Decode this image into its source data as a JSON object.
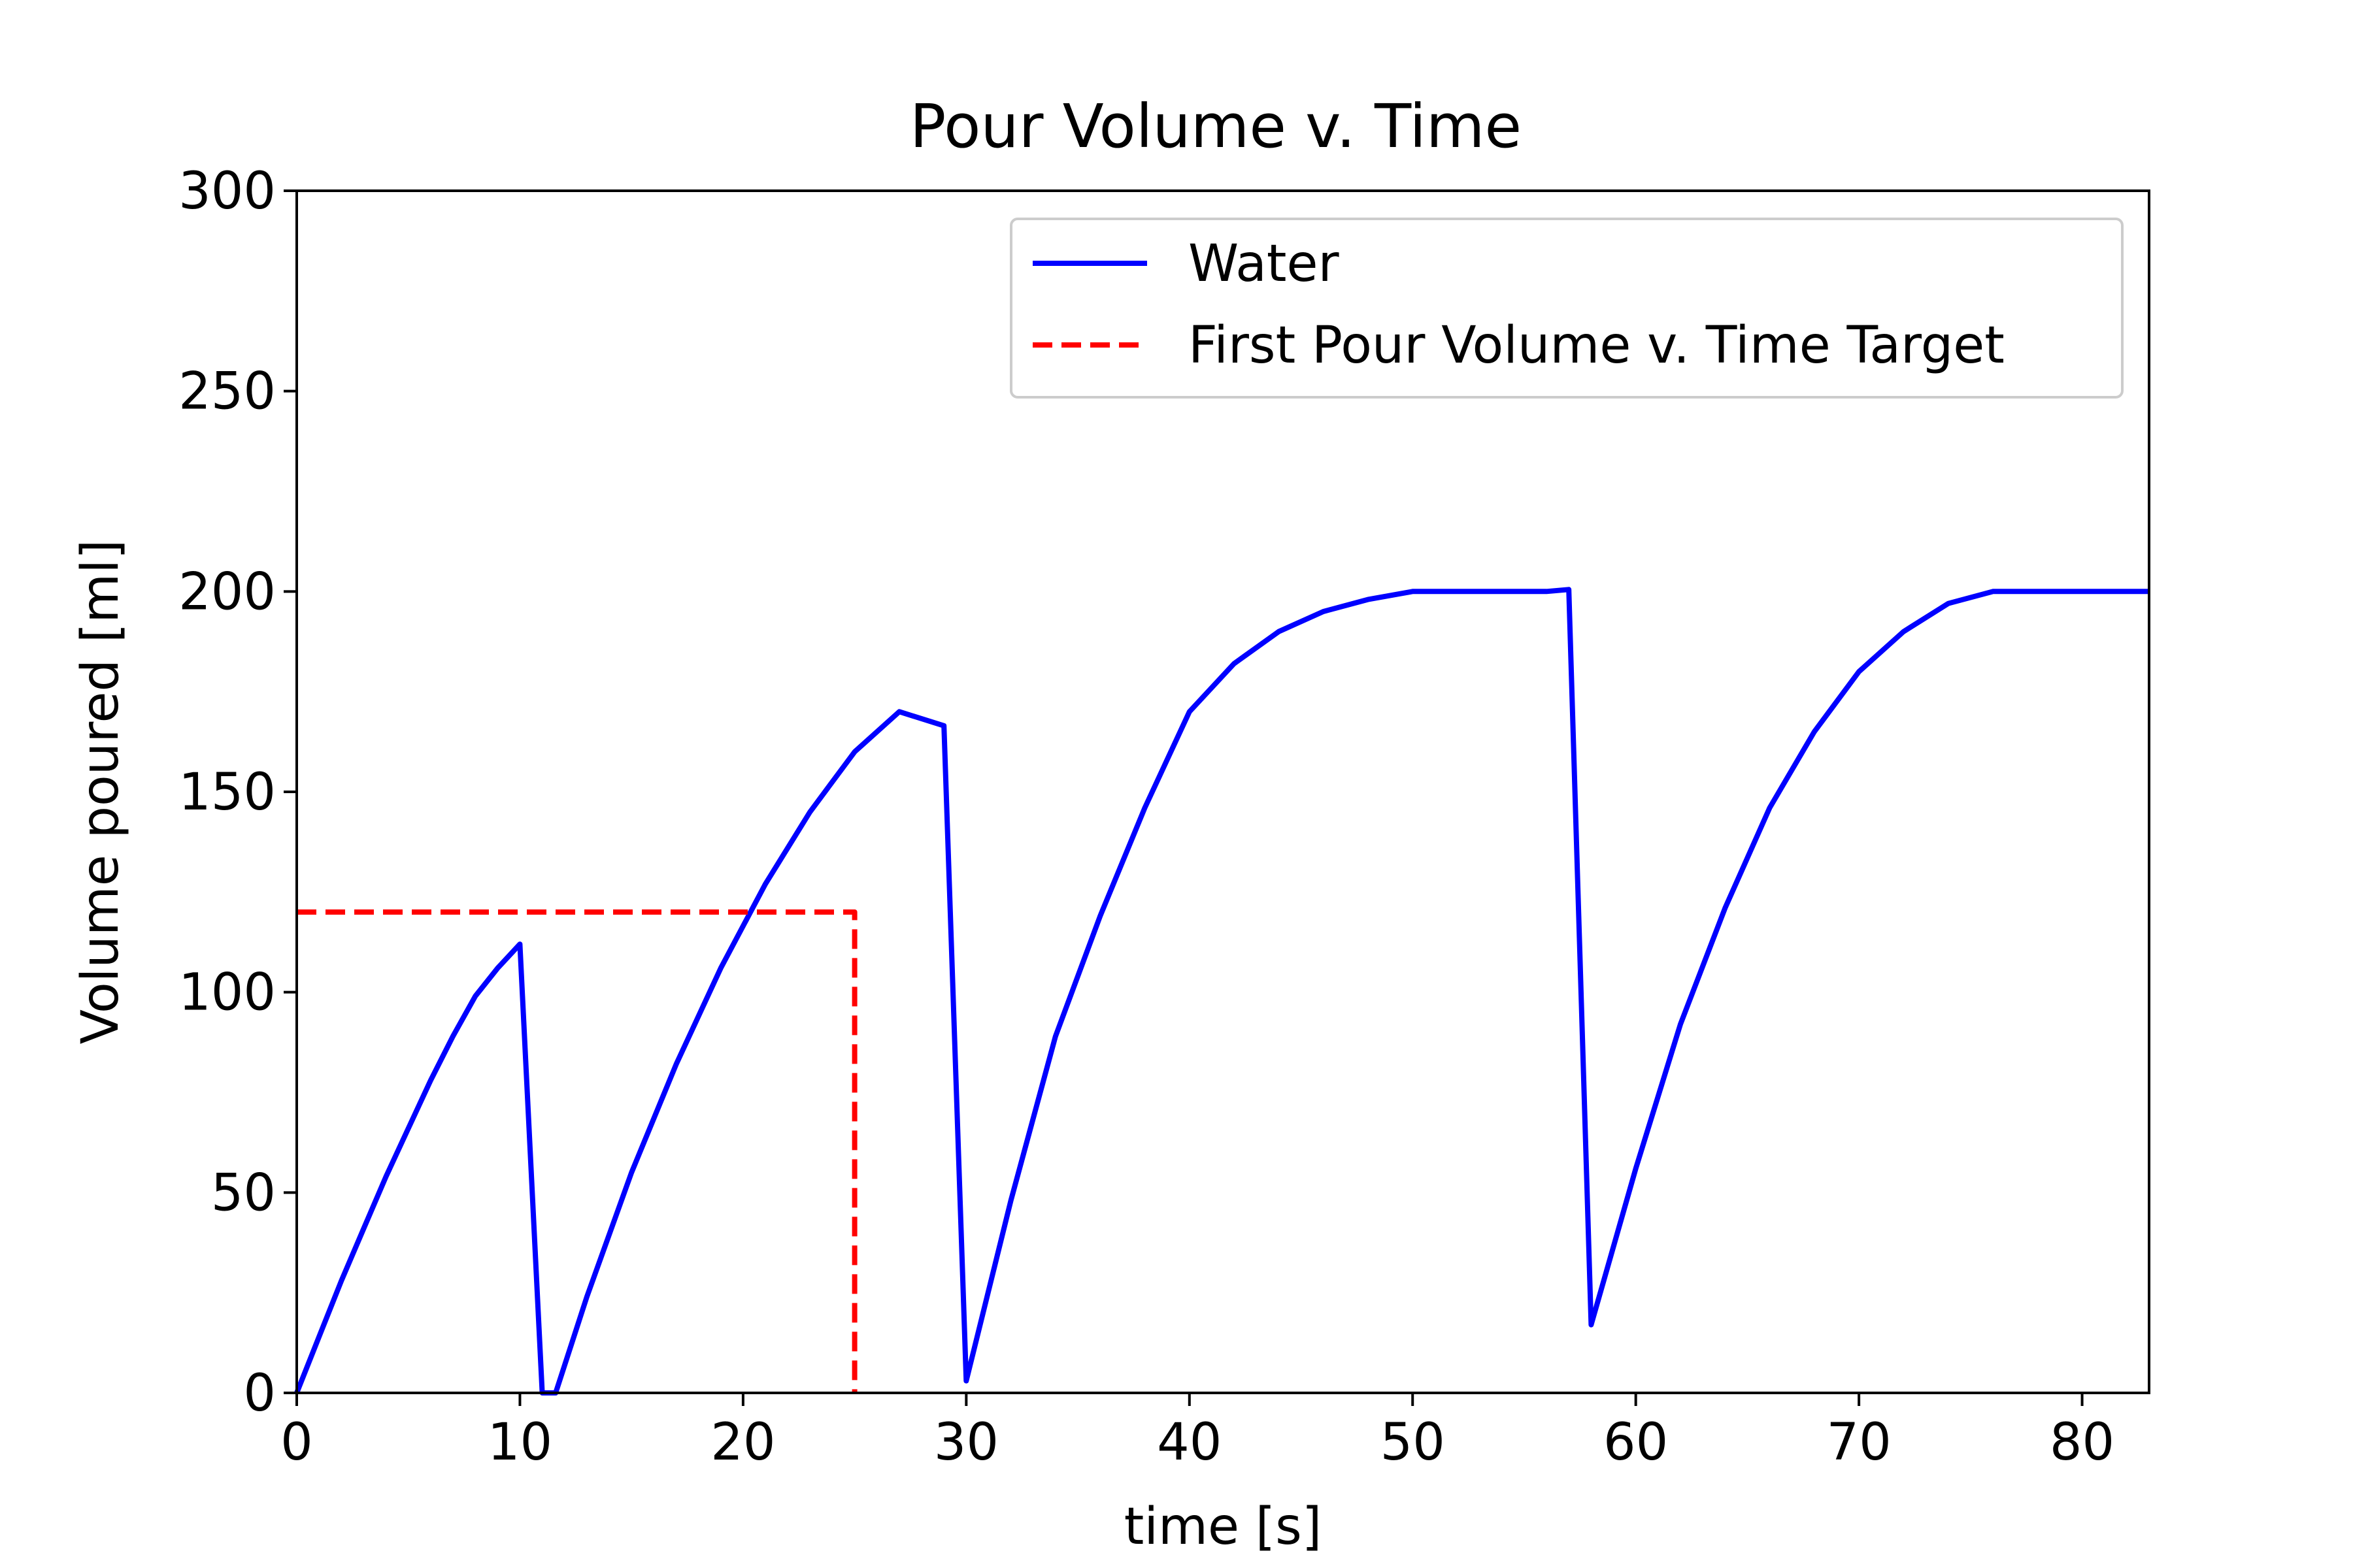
{
  "chart_data": {
    "type": "line",
    "title": "Pour Volume v. Time",
    "xlabel": "time [s]",
    "ylabel": "Volume poured [ml]",
    "xlim": [
      0,
      83
    ],
    "ylim": [
      0,
      300
    ],
    "xticks": [
      "0",
      "10",
      "20",
      "30",
      "40",
      "50",
      "60",
      "70",
      "80"
    ],
    "yticks": [
      "0",
      "50",
      "100",
      "150",
      "200",
      "250",
      "300"
    ],
    "grid": false,
    "legend_position": "top-right",
    "series": [
      {
        "name": "Water",
        "color": "#0000ff",
        "style": "solid",
        "x": [
          0,
          1,
          2,
          3,
          4,
          5,
          6,
          7,
          8,
          9,
          10,
          11,
          11.6,
          13,
          15,
          17,
          19,
          21,
          23,
          25,
          27,
          29,
          30,
          32,
          34,
          36,
          38,
          40,
          42,
          44,
          46,
          48,
          50,
          52,
          54,
          56,
          57,
          58,
          60,
          62,
          64,
          66,
          68,
          70,
          72,
          74,
          76,
          78,
          80,
          82,
          83
        ],
        "y": [
          0,
          14,
          28,
          41,
          54,
          66,
          78,
          89,
          99,
          106,
          112,
          0,
          0,
          24,
          55,
          82,
          106,
          127,
          145,
          160,
          170,
          166.5,
          3,
          48,
          89,
          119,
          146,
          170,
          182,
          190,
          195,
          198,
          200,
          200,
          200,
          200,
          200.5,
          17,
          56,
          92,
          121,
          146,
          165,
          180,
          190,
          197,
          200,
          200,
          200,
          200,
          200
        ]
      },
      {
        "name": "First Pour Volume v. Time Target",
        "color": "#ff0000",
        "style": "dashed",
        "x": [
          0,
          25,
          25
        ],
        "y": [
          120,
          120,
          0
        ]
      }
    ]
  }
}
